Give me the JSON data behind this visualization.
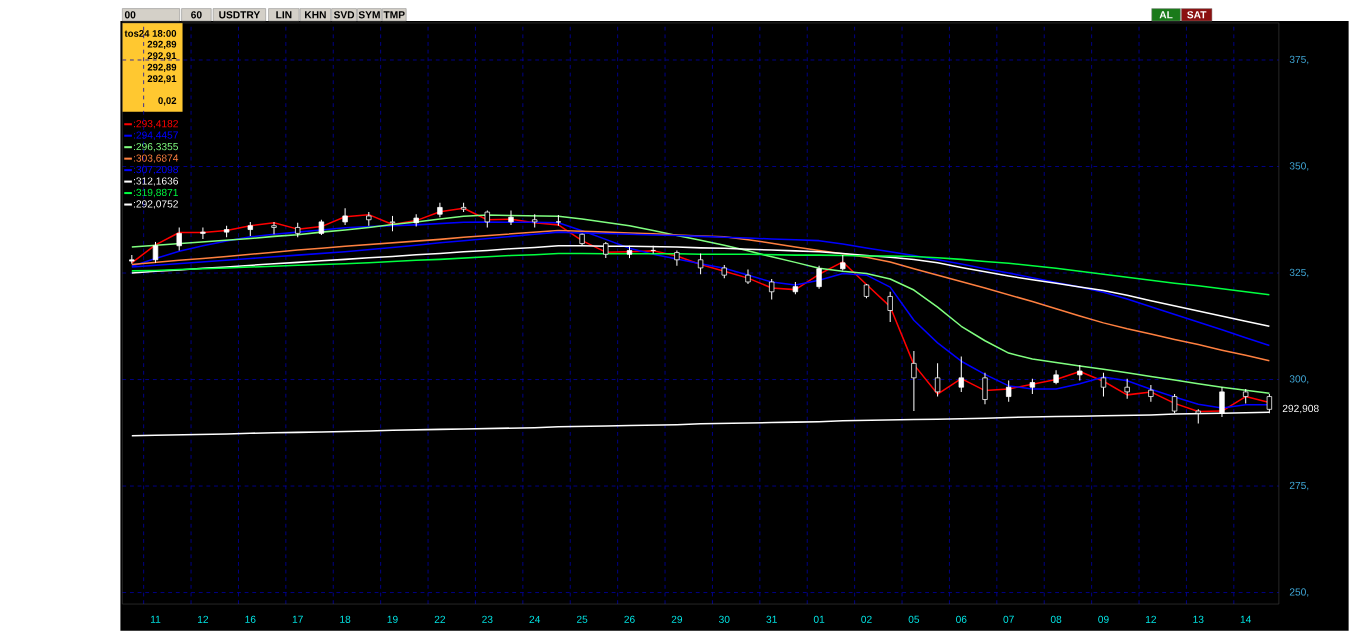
{
  "chart_data": {
    "type": "line",
    "title": "USDTRY",
    "annotations": [
      "00",
      "60",
      "LIN",
      "KHN",
      "SVD",
      "SYM",
      "TMP",
      "AL",
      "SAT",
      "tos24 18:00",
      "292,89",
      "292,91",
      "292,89",
      "292,91",
      "0,02",
      "292,908"
    ],
    "categories": [
      null,
      "11",
      null,
      "12",
      null,
      "16",
      null,
      "17",
      null,
      "18",
      null,
      "19",
      null,
      "22",
      null,
      "23",
      null,
      "24",
      null,
      "25",
      null,
      "26",
      null,
      "29",
      null,
      "30",
      null,
      "31",
      null,
      "01",
      null,
      "02",
      null,
      "05",
      null,
      "06",
      null,
      "07",
      null,
      "08",
      null,
      "09",
      null,
      "12",
      null,
      "13",
      null,
      "14",
      null
    ],
    "ylim": [
      247.3,
      383.7
    ],
    "yticks": [
      {
        "value": 250,
        "label": "250,"
      },
      {
        "value": 275,
        "label": "275,"
      },
      {
        "value": 300,
        "label": "300,"
      },
      {
        "value": 325,
        "label": "325,"
      },
      {
        "value": 350,
        "label": "350,"
      },
      {
        "value": 375,
        "label": "375,"
      }
    ],
    "grid": true,
    "legend": "top left",
    "series": [
      {
        "name": ":293,4182",
        "color": "#ff0000",
        "values": [
          327.4,
          331.6,
          334.5,
          334.5,
          335.0,
          336.1,
          336.8,
          335.3,
          335.9,
          338.2,
          338.7,
          336.4,
          337.3,
          339.4,
          340.2,
          337.5,
          337.6,
          336.8,
          336.3,
          332.6,
          329.9,
          330.0,
          330.2,
          329.0,
          327.0,
          325.4,
          323.8,
          321.5,
          321.1,
          324.7,
          327.6,
          322.3,
          317.1,
          303.5,
          296.6,
          300.2,
          297.4,
          297.8,
          298.9,
          300.0,
          301.9,
          299.6,
          296.4,
          297.1,
          294.4,
          292.5,
          292.6,
          296.0,
          294.6
        ]
      },
      {
        "name": ":294,4457",
        "color": "#0000ff",
        "values": [
          326.6,
          328.4,
          330.1,
          331.4,
          332.5,
          333.5,
          334.1,
          334.6,
          335.1,
          335.6,
          335.9,
          336.1,
          336.3,
          336.6,
          336.9,
          337.0,
          336.9,
          336.9,
          336.8,
          334.9,
          332.9,
          330.8,
          329.4,
          328.3,
          327.2,
          326.1,
          324.5,
          322.9,
          322.2,
          323.3,
          324.9,
          324.5,
          321.7,
          313.9,
          308.6,
          304.3,
          301.2,
          298.5,
          297.8,
          297.8,
          299.0,
          300.6,
          299.7,
          297.7,
          295.9,
          294.2,
          293.3,
          294.1,
          294.1
        ]
      },
      {
        "name": ":296,3355",
        "color": "#80ff80",
        "values": [
          331.1,
          331.5,
          331.9,
          332.3,
          332.7,
          333.1,
          333.6,
          334.0,
          334.6,
          335.1,
          335.7,
          336.4,
          337.0,
          337.7,
          338.3,
          338.6,
          338.5,
          338.4,
          338.3,
          337.7,
          336.9,
          336.1,
          335.0,
          333.8,
          332.7,
          331.5,
          330.2,
          328.8,
          327.5,
          326.1,
          325.4,
          324.9,
          323.6,
          321.0,
          317.0,
          312.5,
          309.1,
          306.2,
          304.8,
          304.0,
          303.2,
          302.4,
          301.6,
          300.7,
          299.9,
          299.0,
          298.2,
          297.5,
          296.8
        ]
      },
      {
        "name": ":303,6874",
        "color": "#ff8040",
        "values": [
          327.0,
          327.5,
          328.0,
          328.4,
          328.9,
          329.4,
          329.9,
          330.4,
          330.8,
          331.3,
          331.7,
          332.1,
          332.5,
          332.9,
          333.4,
          333.8,
          334.2,
          334.6,
          335.0,
          334.8,
          334.6,
          334.4,
          334.2,
          333.9,
          333.7,
          333.5,
          332.8,
          332.0,
          331.1,
          330.3,
          329.5,
          328.7,
          327.6,
          326.0,
          324.5,
          323.0,
          321.5,
          319.9,
          318.3,
          316.6,
          314.9,
          313.3,
          311.9,
          310.7,
          309.4,
          308.2,
          306.9,
          305.7,
          304.4
        ]
      },
      {
        "name": ":307,2098",
        "color": "#0000ff",
        "values": [
          326.4,
          326.8,
          327.2,
          327.6,
          328.0,
          328.4,
          328.8,
          329.2,
          329.6,
          330.0,
          330.5,
          331.0,
          331.5,
          332.1,
          332.6,
          333.1,
          333.6,
          334.1,
          334.6,
          334.4,
          334.3,
          334.1,
          333.9,
          333.8,
          333.6,
          333.4,
          333.2,
          333.0,
          332.8,
          332.6,
          331.8,
          330.9,
          330.0,
          329.1,
          328.1,
          327.1,
          326.0,
          325.0,
          323.9,
          322.8,
          321.7,
          320.5,
          318.9,
          317.1,
          315.3,
          313.5,
          311.7,
          309.8,
          308.0
        ]
      },
      {
        "name": ":312,1636",
        "color": "#ffffff",
        "values": [
          325.0,
          325.4,
          325.7,
          326.1,
          326.4,
          326.8,
          327.2,
          327.5,
          327.9,
          328.2,
          328.6,
          328.9,
          329.3,
          329.6,
          330.0,
          330.3,
          330.7,
          331.0,
          331.4,
          331.4,
          331.3,
          331.3,
          331.2,
          331.1,
          330.9,
          330.8,
          330.6,
          330.4,
          330.2,
          330.0,
          329.6,
          329.1,
          328.7,
          328.2,
          327.4,
          326.3,
          325.3,
          324.3,
          323.4,
          322.6,
          321.7,
          320.9,
          319.8,
          318.5,
          317.3,
          316.1,
          314.9,
          313.7,
          312.5
        ]
      },
      {
        "name": ":319,8871",
        "color": "#00ff40",
        "values": [
          325.5,
          325.6,
          325.8,
          326.0,
          326.2,
          326.4,
          326.6,
          326.8,
          327.0,
          327.2,
          327.4,
          327.7,
          328.0,
          328.2,
          328.5,
          328.8,
          329.1,
          329.3,
          329.6,
          329.6,
          329.5,
          329.5,
          329.5,
          329.5,
          329.4,
          329.4,
          329.4,
          329.3,
          329.2,
          329.2,
          329.1,
          329.0,
          329.0,
          328.9,
          328.6,
          328.2,
          327.7,
          327.3,
          326.7,
          326.1,
          325.4,
          324.7,
          324.0,
          323.3,
          322.6,
          322.0,
          321.3,
          320.6,
          319.9
        ]
      },
      {
        "name": ":292,0752",
        "color": "#ffffff",
        "values": [
          286.8,
          286.9,
          287.0,
          287.1,
          287.2,
          287.4,
          287.5,
          287.6,
          287.7,
          287.8,
          287.9,
          288.1,
          288.2,
          288.3,
          288.4,
          288.5,
          288.6,
          288.7,
          288.9,
          289.0,
          289.1,
          289.2,
          289.3,
          289.4,
          289.6,
          289.7,
          289.8,
          289.9,
          290.0,
          290.1,
          290.3,
          290.4,
          290.5,
          290.6,
          290.7,
          290.8,
          290.9,
          291.1,
          291.2,
          291.3,
          291.4,
          291.5,
          291.6,
          291.7,
          291.9,
          292.0,
          292.1,
          292.2,
          292.3
        ]
      },
      {
        "type": "candlestick",
        "color": "#ffffff",
        "ohlc": [
          [
            327.8,
            329.2,
            327.2,
            328.1
          ],
          [
            328.1,
            332.3,
            327.4,
            331.4
          ],
          [
            331.4,
            335.7,
            330.3,
            334.3
          ],
          [
            334.3,
            335.7,
            333.0,
            334.6
          ],
          [
            334.6,
            336.1,
            333.4,
            335.2
          ],
          [
            335.2,
            337.0,
            333.7,
            336.1
          ],
          [
            336.1,
            337.0,
            334.1,
            335.7
          ],
          [
            335.7,
            336.8,
            333.4,
            334.3
          ],
          [
            334.3,
            337.5,
            333.9,
            337.0
          ],
          [
            337.0,
            340.2,
            336.3,
            338.4
          ],
          [
            338.4,
            339.3,
            336.1,
            337.5
          ],
          [
            337.0,
            338.4,
            334.8,
            336.8
          ],
          [
            336.8,
            338.8,
            335.9,
            337.9
          ],
          [
            338.8,
            341.5,
            338.1,
            340.4
          ],
          [
            340.4,
            341.5,
            339.3,
            340.0
          ],
          [
            339.3,
            339.7,
            335.7,
            337.0
          ],
          [
            337.0,
            339.7,
            336.3,
            338.1
          ],
          [
            337.5,
            338.8,
            335.7,
            337.0
          ],
          [
            337.0,
            338.6,
            336.1,
            337.0
          ],
          [
            334.1,
            334.3,
            331.6,
            331.9
          ],
          [
            331.9,
            332.3,
            328.5,
            329.4
          ],
          [
            329.4,
            331.4,
            328.5,
            330.3
          ],
          [
            330.3,
            331.4,
            329.6,
            330.3
          ],
          [
            329.8,
            330.3,
            326.7,
            328.1
          ],
          [
            328.1,
            329.6,
            324.7,
            326.2
          ],
          [
            326.2,
            326.9,
            323.8,
            324.5
          ],
          [
            324.5,
            325.8,
            322.4,
            322.9
          ],
          [
            322.9,
            323.6,
            318.8,
            320.6
          ],
          [
            320.6,
            322.9,
            320.0,
            321.8
          ],
          [
            321.8,
            326.7,
            321.3,
            326.0
          ],
          [
            326.0,
            329.2,
            325.6,
            327.4
          ],
          [
            322.2,
            322.4,
            319.1,
            319.5
          ],
          [
            319.5,
            320.6,
            313.5,
            316.2
          ],
          [
            303.8,
            306.7,
            292.6,
            300.4
          ],
          [
            300.4,
            303.8,
            296.0,
            297.1
          ],
          [
            298.2,
            305.4,
            297.1,
            300.4
          ],
          [
            300.4,
            301.6,
            294.2,
            295.3
          ],
          [
            296.0,
            299.8,
            294.8,
            298.2
          ],
          [
            298.2,
            300.2,
            296.6,
            299.3
          ],
          [
            299.3,
            302.2,
            298.9,
            301.1
          ],
          [
            301.1,
            303.4,
            299.8,
            302.0
          ],
          [
            300.4,
            301.6,
            296.0,
            298.2
          ],
          [
            298.2,
            300.2,
            295.5,
            297.1
          ],
          [
            297.5,
            298.7,
            294.8,
            296.0
          ],
          [
            296.0,
            296.6,
            292.1,
            292.6
          ],
          [
            292.6,
            293.0,
            289.7,
            292.1
          ],
          [
            292.1,
            298.2,
            291.2,
            297.1
          ],
          [
            297.1,
            297.8,
            294.4,
            296.0
          ],
          [
            296.0,
            296.6,
            292.1,
            293.0
          ]
        ]
      }
    ]
  }
}
